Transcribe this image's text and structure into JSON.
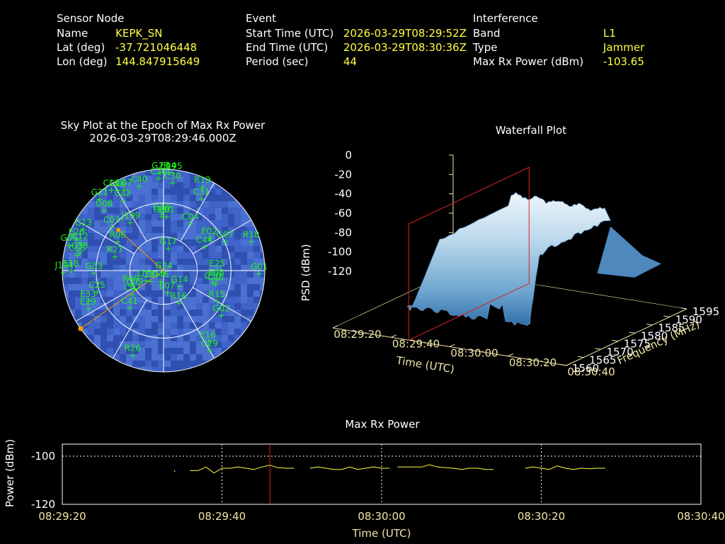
{
  "info": {
    "sensor": {
      "heading": "Sensor Node",
      "name_label": "Name",
      "name_value": "KEPK_SN",
      "lat_label": "Lat (deg)",
      "lat_value": "-37.721046448",
      "lon_label": "Lon (deg)",
      "lon_value": "144.847915649"
    },
    "event": {
      "heading": "Event",
      "start_label": "Start Time (UTC)",
      "start_value": "2026-03-29T08:29:52Z",
      "end_label": "End Time (UTC)",
      "end_value": "2026-03-29T08:30:36Z",
      "period_label": "Period (sec)",
      "period_value": "44"
    },
    "interference": {
      "heading": "Interference",
      "band_label": "Band",
      "band_value": "L1",
      "type_label": "Type",
      "type_value": "Jammer",
      "power_label": "Max Rx Power (dBm)",
      "power_value": "-103.65"
    }
  },
  "colors": {
    "label": "#ffffff",
    "value": "#ffff44",
    "sat": "#22ee22",
    "marker": "#ff9900",
    "trace": "#ffff44",
    "cursor": "#dd2222",
    "axis": "#f0e6a8",
    "sky_bg": "#3a5cc0"
  },
  "chart_data": [
    {
      "type": "polar-scatter",
      "title": "Sky Plot at the Epoch of Max Rx Power",
      "subtitle": "2026-03-29T08:29:46.000Z",
      "satellites": [
        {
          "id": "J195",
          "az": 5,
          "el": 3
        },
        {
          "id": "E04",
          "az": 3,
          "el": 3
        },
        {
          "id": "G23",
          "az": 358,
          "el": 3
        },
        {
          "id": "C20",
          "az": 357,
          "el": 8
        },
        {
          "id": "C30",
          "az": 6,
          "el": 12
        },
        {
          "id": "R19",
          "az": 25,
          "el": 8
        },
        {
          "id": "C31",
          "az": 28,
          "el": 18
        },
        {
          "id": "C04",
          "az": 30,
          "el": 42
        },
        {
          "id": "C16",
          "az": 327,
          "el": 5
        },
        {
          "id": "C26",
          "az": 330,
          "el": 8
        },
        {
          "id": "C07",
          "az": 334,
          "el": 10
        },
        {
          "id": "C40",
          "az": 344,
          "el": 12
        },
        {
          "id": "C42",
          "az": 330,
          "el": 18
        },
        {
          "id": "G21",
          "az": 318,
          "el": 5
        },
        {
          "id": "G08",
          "az": 315,
          "el": 15
        },
        {
          "id": "G10",
          "az": 358,
          "el": 40
        },
        {
          "id": "J199",
          "az": 325,
          "el": 38
        },
        {
          "id": "C01",
          "az": 3,
          "el": 42
        },
        {
          "id": "C60",
          "az": 358,
          "el": 42
        },
        {
          "id": "G17",
          "az": 12,
          "el": 70
        },
        {
          "id": "C44",
          "az": 60,
          "el": 48
        },
        {
          "id": "E02",
          "az": 55,
          "el": 40
        },
        {
          "id": "G07",
          "az": 65,
          "el": 30
        },
        {
          "id": "R18",
          "az": 72,
          "el": 8
        },
        {
          "id": "G13",
          "az": 297,
          "el": 10
        },
        {
          "id": "C03",
          "az": 310,
          "el": 30
        },
        {
          "id": "R06",
          "az": 302,
          "el": 42
        },
        {
          "id": "E26",
          "az": 290,
          "el": 8
        },
        {
          "id": "G05",
          "az": 285,
          "el": 3
        },
        {
          "id": "C12",
          "az": 288,
          "el": 12
        },
        {
          "id": "C38",
          "az": 282,
          "el": 14
        },
        {
          "id": "C56",
          "az": 280,
          "el": 12
        },
        {
          "id": "E18",
          "az": 270,
          "el": 8
        },
        {
          "id": "G33",
          "az": 268,
          "el": 28
        },
        {
          "id": "R27",
          "az": 286,
          "el": 45
        },
        {
          "id": "J194",
          "az": 269,
          "el": 1
        },
        {
          "id": "G01",
          "az": 92,
          "el": 5
        },
        {
          "id": "E25",
          "az": 90,
          "el": 42
        },
        {
          "id": "E08",
          "az": 100,
          "el": 42
        },
        {
          "id": "C28",
          "az": 105,
          "el": 42
        },
        {
          "id": "C30b",
          "az": 104,
          "el": 45
        },
        {
          "id": "G14",
          "az": 135,
          "el": 70
        },
        {
          "id": "E07",
          "az": 170,
          "el": 70
        },
        {
          "id": "R16",
          "az": 155,
          "el": 58
        },
        {
          "id": "R15",
          "az": 120,
          "el": 35
        },
        {
          "id": "G02",
          "az": 128,
          "el": 25
        },
        {
          "id": "E16",
          "az": 148,
          "el": 15
        },
        {
          "id": "C29",
          "az": 150,
          "el": 8
        },
        {
          "id": "G24",
          "az": 175,
          "el": 88
        },
        {
          "id": "C46",
          "az": 195,
          "el": 80
        },
        {
          "id": "C33",
          "az": 230,
          "el": 75
        },
        {
          "id": "C39",
          "az": 240,
          "el": 72
        },
        {
          "id": "R09",
          "az": 245,
          "el": 58
        },
        {
          "id": "C09",
          "az": 238,
          "el": 60
        },
        {
          "id": "C07b",
          "az": 232,
          "el": 55
        },
        {
          "id": "C41",
          "az": 222,
          "el": 45
        },
        {
          "id": "C25",
          "az": 252,
          "el": 28
        },
        {
          "id": "E33",
          "az": 248,
          "el": 18
        },
        {
          "id": "E29",
          "az": 243,
          "el": 15
        },
        {
          "id": "R26",
          "az": 200,
          "el": 10
        }
      ],
      "max_power_marker": {
        "az": 235,
        "el": 0
      },
      "interference_marker": {
        "az": 312,
        "el": 36
      }
    },
    {
      "type": "surface-3d",
      "title": "Waterfall Plot",
      "xlabel": "Time (UTC)",
      "ylabel": "Frequency (MHz)",
      "zlabel": "PSD (dBm)",
      "time_ticks": [
        "08:29:20",
        "08:29:40",
        "08:30:00",
        "08:30:20",
        "08:30:40"
      ],
      "freq_ticks": [
        1560,
        1565,
        1570,
        1575,
        1580,
        1585,
        1590,
        1595
      ],
      "psd_ticks": [
        0,
        -20,
        -40,
        -60,
        -80,
        -100,
        -120
      ],
      "zlim": [
        -120,
        0
      ],
      "ylim": [
        1560,
        1595
      ],
      "psd_plateau_dbm": -25,
      "psd_floor_dbm": -95
    },
    {
      "type": "line",
      "title": "Max Rx Power",
      "xlabel": "Time (UTC)",
      "ylabel": "Power (dBm)",
      "x_ticks": [
        "08:29:20",
        "08:29:40",
        "08:30:00",
        "08:30:20",
        "08:30:40"
      ],
      "y_ticks": [
        -100,
        -120
      ],
      "ylim": [
        -120,
        -95
      ],
      "xlim_sec": [
        0,
        80
      ],
      "cursor_sec": 26,
      "segments": [
        [
          [
            16,
            -106
          ],
          [
            17,
            -106
          ],
          [
            18,
            -104.5
          ],
          [
            19,
            -107
          ],
          [
            20,
            -105
          ],
          [
            21,
            -105
          ],
          [
            22,
            -104.5
          ],
          [
            23,
            -105
          ],
          [
            24,
            -105.5
          ],
          [
            25,
            -104.5
          ],
          [
            26,
            -103.7
          ],
          [
            27,
            -104.8
          ],
          [
            28,
            -105
          ],
          [
            29,
            -105
          ]
        ],
        [
          [
            31,
            -105
          ],
          [
            32,
            -104.5
          ],
          [
            33,
            -105
          ],
          [
            34,
            -105.5
          ],
          [
            35,
            -105.5
          ],
          [
            36,
            -104.5
          ],
          [
            37,
            -105.5
          ],
          [
            38,
            -105
          ],
          [
            39,
            -104.5
          ],
          [
            40,
            -105
          ],
          [
            41,
            -105
          ]
        ],
        [
          [
            42,
            -104.5
          ],
          [
            43,
            -104.5
          ],
          [
            44,
            -104.5
          ],
          [
            45,
            -104.5
          ],
          [
            46,
            -103.6
          ],
          [
            47,
            -104.5
          ],
          [
            48,
            -104.8
          ],
          [
            49,
            -105
          ],
          [
            50,
            -105.5
          ],
          [
            51,
            -105
          ],
          [
            52,
            -105
          ],
          [
            53,
            -105.5
          ],
          [
            54,
            -105.5
          ]
        ],
        [
          [
            58,
            -105
          ],
          [
            59,
            -104.5
          ],
          [
            60,
            -105
          ],
          [
            61,
            -105.5
          ],
          [
            62,
            -104
          ],
          [
            63,
            -105
          ],
          [
            64,
            -105.5
          ],
          [
            65,
            -105
          ],
          [
            66,
            -105.2
          ],
          [
            67,
            -105
          ],
          [
            68,
            -105
          ]
        ]
      ],
      "dot": [
        [
          14,
          -106
        ]
      ]
    }
  ]
}
